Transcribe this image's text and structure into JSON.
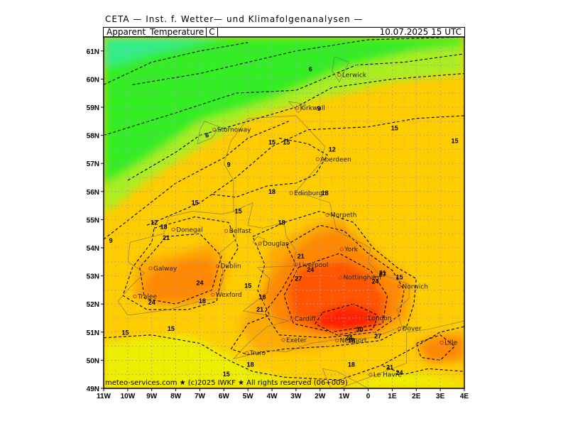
{
  "header": {
    "source": "CETA — Inst. f. Wetter— und Klimafolgenanalysen —",
    "parameter": "Apparent_Temperature",
    "unit": "C",
    "valid_time": "10.07.2025 15 UTC"
  },
  "footer": {
    "copyright": "meteo-services.com ★ (c)2025 IWKF ★ All rights reserved (06+009)"
  },
  "map": {
    "type": "contour-map",
    "lon_range": [
      -11,
      4
    ],
    "lat_range": [
      49,
      61.5
    ],
    "lon_ticks": [
      "11W",
      "10W",
      "9W",
      "8W",
      "7W",
      "6W",
      "5W",
      "4W",
      "3W",
      "2W",
      "1W",
      "0",
      "1E",
      "2E",
      "3E",
      "4E"
    ],
    "lat_ticks": [
      "49N",
      "50N",
      "51N",
      "52N",
      "53N",
      "54N",
      "55N",
      "56N",
      "57N",
      "58N",
      "59N",
      "60N",
      "61N"
    ],
    "grid": true,
    "colors": {
      "cold_teal": "#33ee88",
      "green": "#33ee22",
      "lime": "#aaee22",
      "yellow": "#eeee00",
      "gold": "#ffcc00",
      "orange_light": "#ffaa00",
      "orange": "#ff8800",
      "red_orange": "#ff5500",
      "red": "#ff2200"
    },
    "cities": [
      {
        "name": "Lerwick",
        "lon": -1.2,
        "lat": 60.15
      },
      {
        "name": "Kirkwall",
        "lon": -2.95,
        "lat": 58.98
      },
      {
        "name": "Stornoway",
        "lon": -6.4,
        "lat": 58.2
      },
      {
        "name": "Aberdeen",
        "lon": -2.1,
        "lat": 57.15
      },
      {
        "name": "Edinburgh",
        "lon": -3.2,
        "lat": 55.95
      },
      {
        "name": "Douglas",
        "lon": -4.5,
        "lat": 54.15
      },
      {
        "name": "Morpeth",
        "lon": -1.7,
        "lat": 55.17
      },
      {
        "name": "Donegal",
        "lon": -8.1,
        "lat": 54.65
      },
      {
        "name": "Belfast",
        "lon": -5.9,
        "lat": 54.6
      },
      {
        "name": "York",
        "lon": -1.1,
        "lat": 53.95
      },
      {
        "name": "Liverpool",
        "lon": -3.0,
        "lat": 53.4
      },
      {
        "name": "Galway",
        "lon": -9.05,
        "lat": 53.27
      },
      {
        "name": "Dublin",
        "lon": -6.26,
        "lat": 53.35
      },
      {
        "name": "Nottingham",
        "lon": -1.15,
        "lat": 52.95
      },
      {
        "name": "Norwich",
        "lon": 1.3,
        "lat": 52.63
      },
      {
        "name": "Wexford",
        "lon": -6.46,
        "lat": 52.33
      },
      {
        "name": "Tralee",
        "lon": -9.7,
        "lat": 52.27
      },
      {
        "name": "Cardiff",
        "lon": -3.18,
        "lat": 51.48
      },
      {
        "name": "London",
        "lon": -0.12,
        "lat": 51.5
      },
      {
        "name": "Exeter",
        "lon": -3.53,
        "lat": 50.72
      },
      {
        "name": "Newport",
        "lon": -1.3,
        "lat": 50.7
      },
      {
        "name": "Dover",
        "lon": 1.3,
        "lat": 51.13
      },
      {
        "name": "Truro",
        "lon": -5.05,
        "lat": 50.26
      },
      {
        "name": "Lille",
        "lon": 3.06,
        "lat": 50.63
      },
      {
        "name": "Le Havre",
        "lon": 0.1,
        "lat": 49.49
      }
    ],
    "contour_labels": [
      {
        "text": "6",
        "lon": -2.4,
        "lat": 60.35
      },
      {
        "text": "6",
        "lon": -6.7,
        "lat": 58.0
      },
      {
        "text": "9",
        "lon": -2.05,
        "lat": 58.95
      },
      {
        "text": "9",
        "lon": -5.8,
        "lat": 56.95
      },
      {
        "text": "9",
        "lon": -10.7,
        "lat": 54.25
      },
      {
        "text": "12",
        "lon": -1.5,
        "lat": 57.5
      },
      {
        "text": "12",
        "lon": -8.9,
        "lat": 54.9
      },
      {
        "text": "15",
        "lon": 1.1,
        "lat": 58.25
      },
      {
        "text": "15",
        "lon": 3.6,
        "lat": 57.8
      },
      {
        "text": "15",
        "lon": -7.2,
        "lat": 55.6
      },
      {
        "text": "15",
        "lon": -5.4,
        "lat": 55.3
      },
      {
        "text": "15",
        "lon": -4.0,
        "lat": 57.75
      },
      {
        "text": "15",
        "lon": -3.4,
        "lat": 57.75
      },
      {
        "text": "15",
        "lon": -5.0,
        "lat": 52.65
      },
      {
        "text": "15",
        "lon": -10.1,
        "lat": 50.98
      },
      {
        "text": "15",
        "lon": -8.2,
        "lat": 51.12
      },
      {
        "text": "15",
        "lon": 1.3,
        "lat": 52.95
      },
      {
        "text": "15",
        "lon": -5.9,
        "lat": 49.5
      },
      {
        "text": "18",
        "lon": -4.0,
        "lat": 56.0
      },
      {
        "text": "18",
        "lon": -1.8,
        "lat": 55.95
      },
      {
        "text": "18",
        "lon": -3.6,
        "lat": 54.9
      },
      {
        "text": "18",
        "lon": -8.5,
        "lat": 54.75
      },
      {
        "text": "18",
        "lon": -6.9,
        "lat": 52.1
      },
      {
        "text": "18",
        "lon": -4.4,
        "lat": 52.25
      },
      {
        "text": "18",
        "lon": -4.9,
        "lat": 49.85
      },
      {
        "text": "18",
        "lon": -0.7,
        "lat": 50.7
      },
      {
        "text": "18",
        "lon": -0.7,
        "lat": 49.85
      },
      {
        "text": "21",
        "lon": -8.4,
        "lat": 54.35
      },
      {
        "text": "21",
        "lon": -2.8,
        "lat": 53.7
      },
      {
        "text": "21",
        "lon": -4.5,
        "lat": 51.8
      },
      {
        "text": "21",
        "lon": 0.9,
        "lat": 49.75
      },
      {
        "text": "21",
        "lon": 0.6,
        "lat": 53.1
      },
      {
        "text": "24",
        "lon": -7.0,
        "lat": 52.75
      },
      {
        "text": "24",
        "lon": -2.4,
        "lat": 53.22
      },
      {
        "text": "24",
        "lon": 0.3,
        "lat": 52.8
      },
      {
        "text": "24",
        "lon": -9.0,
        "lat": 52.05
      },
      {
        "text": "24",
        "lon": -0.8,
        "lat": 50.8
      },
      {
        "text": "24",
        "lon": 1.3,
        "lat": 49.55
      },
      {
        "text": "27",
        "lon": -2.9,
        "lat": 52.9
      },
      {
        "text": "27",
        "lon": 0.4,
        "lat": 50.85
      },
      {
        "text": "27",
        "lon": 0.6,
        "lat": 53.05
      },
      {
        "text": "30",
        "lon": -0.35,
        "lat": 51.1
      }
    ]
  }
}
